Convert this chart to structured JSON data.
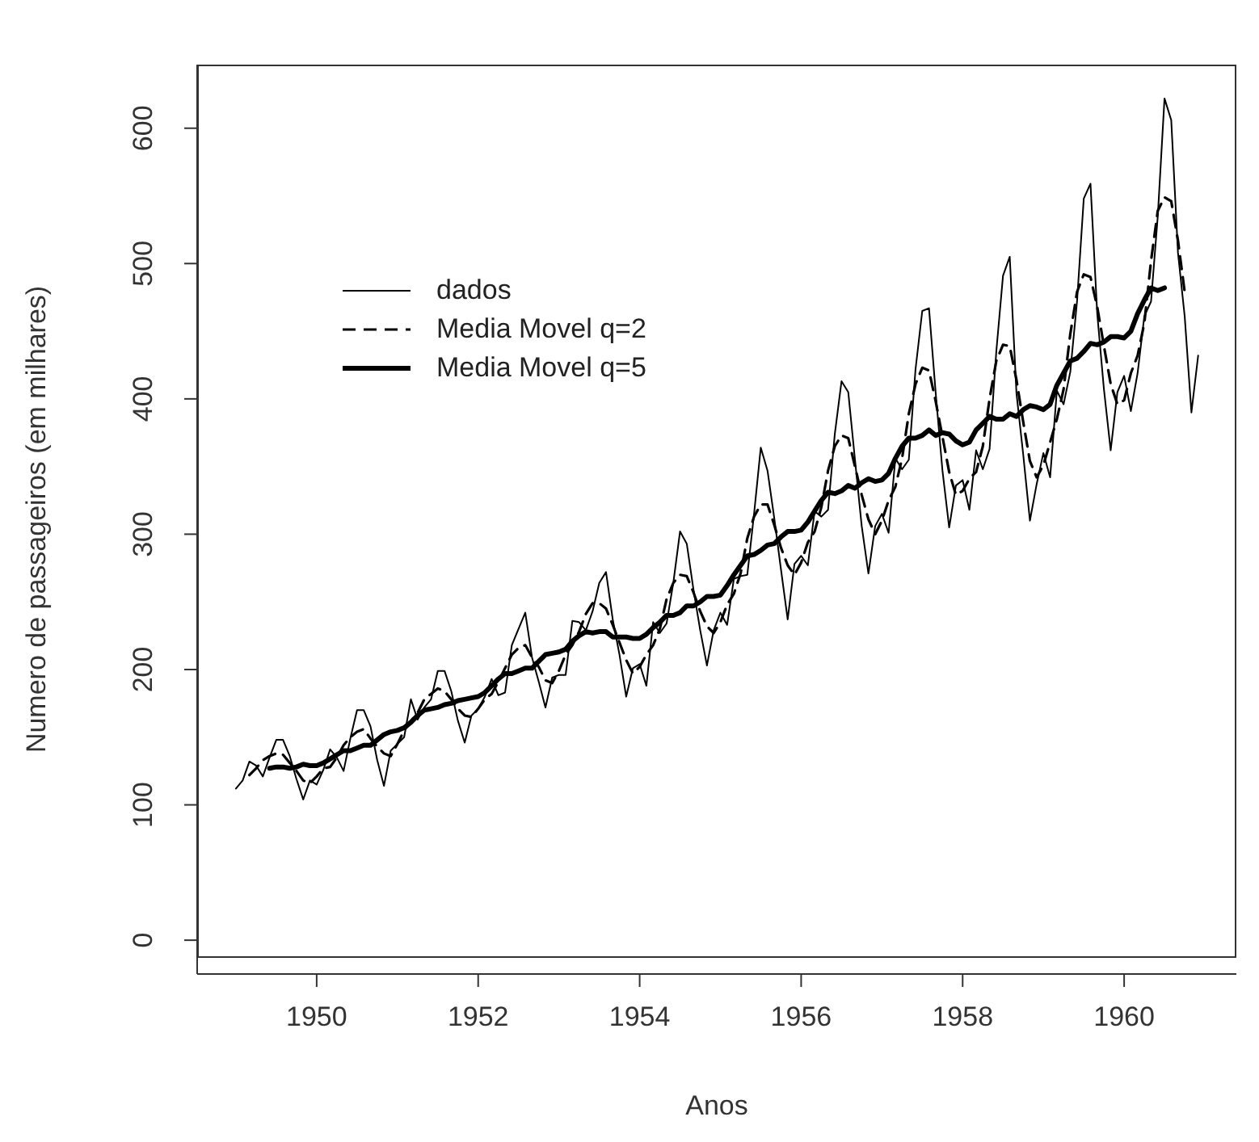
{
  "chart_data": {
    "type": "line",
    "xlabel": "Anos",
    "ylabel": "Numero de passageiros (em milhares)",
    "x": [
      1949,
      1949.0833,
      1949.1667,
      1949.25,
      1949.3333,
      1949.4167,
      1949.5,
      1949.5833,
      1949.6667,
      1949.75,
      1949.8333,
      1949.9167,
      1950,
      1950.0833,
      1950.1667,
      1950.25,
      1950.3333,
      1950.4167,
      1950.5,
      1950.5833,
      1950.6667,
      1950.75,
      1950.8333,
      1950.9167,
      1951,
      1951.0833,
      1951.1667,
      1951.25,
      1951.3333,
      1951.4167,
      1951.5,
      1951.5833,
      1951.6667,
      1951.75,
      1951.8333,
      1951.9167,
      1952,
      1952.0833,
      1952.1667,
      1952.25,
      1952.3333,
      1952.4167,
      1952.5,
      1952.5833,
      1952.6667,
      1952.75,
      1952.8333,
      1952.9167,
      1953,
      1953.0833,
      1953.1667,
      1953.25,
      1953.3333,
      1953.4167,
      1953.5,
      1953.5833,
      1953.6667,
      1953.75,
      1953.8333,
      1953.9167,
      1954,
      1954.0833,
      1954.1667,
      1954.25,
      1954.3333,
      1954.4167,
      1954.5,
      1954.5833,
      1954.6667,
      1954.75,
      1954.8333,
      1954.9167,
      1955,
      1955.0833,
      1955.1667,
      1955.25,
      1955.3333,
      1955.4167,
      1955.5,
      1955.5833,
      1955.6667,
      1955.75,
      1955.8333,
      1955.9167,
      1956,
      1956.0833,
      1956.1667,
      1956.25,
      1956.3333,
      1956.4167,
      1956.5,
      1956.5833,
      1956.6667,
      1956.75,
      1956.8333,
      1956.9167,
      1957,
      1957.0833,
      1957.1667,
      1957.25,
      1957.3333,
      1957.4167,
      1957.5,
      1957.5833,
      1957.6667,
      1957.75,
      1957.8333,
      1957.9167,
      1958,
      1958.0833,
      1958.1667,
      1958.25,
      1958.3333,
      1958.4167,
      1958.5,
      1958.5833,
      1958.6667,
      1958.75,
      1958.8333,
      1958.9167,
      1959,
      1959.0833,
      1959.1667,
      1959.25,
      1959.3333,
      1959.4167,
      1959.5,
      1959.5833,
      1959.6667,
      1959.75,
      1959.8333,
      1959.9167,
      1960,
      1960.0833,
      1960.1667,
      1960.25,
      1960.3333,
      1960.4167,
      1960.5,
      1960.5833,
      1960.6667,
      1960.75,
      1960.8333,
      1960.9167
    ],
    "series": [
      {
        "name": "dados",
        "color": "#000000",
        "line_style": "solid",
        "values": [
          112,
          118,
          132,
          129,
          121,
          135,
          148,
          148,
          136,
          119,
          104,
          118,
          115,
          126,
          141,
          135,
          125,
          149,
          170,
          170,
          158,
          133,
          114,
          140,
          145,
          150,
          178,
          163,
          172,
          178,
          199,
          199,
          184,
          162,
          146,
          166,
          171,
          180,
          193,
          181,
          183,
          218,
          230,
          242,
          209,
          191,
          172,
          194,
          196,
          196,
          236,
          235,
          229,
          243,
          264,
          272,
          237,
          211,
          180,
          201,
          204,
          188,
          235,
          227,
          234,
          264,
          302,
          293,
          259,
          229,
          203,
          229,
          242,
          233,
          267,
          269,
          270,
          315,
          364,
          347,
          312,
          274,
          237,
          278,
          284,
          277,
          317,
          313,
          318,
          374,
          413,
          405,
          355,
          306,
          271,
          306,
          315,
          301,
          356,
          348,
          355,
          422,
          465,
          467,
          404,
          347,
          305,
          336,
          340,
          318,
          362,
          348,
          363,
          435,
          491,
          505,
          404,
          359,
          310,
          337,
          360,
          342,
          406,
          396,
          420,
          472,
          548,
          559,
          463,
          407,
          362,
          405,
          417,
          391,
          419,
          461,
          472,
          535,
          622,
          606,
          508,
          461,
          390,
          432
        ]
      },
      {
        "name": "Media Movel q=2",
        "color": "#000000",
        "line_style": "dashed",
        "values": [
          null,
          null,
          122,
          127,
          133,
          136,
          138,
          137,
          131,
          125,
          118,
          116,
          121,
          127,
          128,
          135,
          144,
          150,
          154,
          156,
          149,
          143,
          138,
          136,
          145,
          155,
          162,
          168,
          178,
          182,
          186,
          184,
          178,
          171,
          166,
          165,
          171,
          178,
          182,
          191,
          201,
          211,
          216,
          218,
          209,
          202,
          192,
          190,
          199,
          211,
          218,
          228,
          241,
          249,
          249,
          245,
          233,
          220,
          207,
          197,
          202,
          211,
          218,
          230,
          252,
          264,
          270,
          269,
          257,
          243,
          232,
          227,
          235,
          248,
          256,
          271,
          297,
          313,
          322,
          322,
          307,
          290,
          277,
          270,
          279,
          294,
          302,
          320,
          347,
          365,
          373,
          371,
          350,
          329,
          311,
          300,
          310,
          325,
          335,
          356,
          389,
          411,
          423,
          421,
          398,
          372,
          346,
          329,
          332,
          341,
          346,
          365,
          400,
          428,
          440,
          439,
          414,
          383,
          354,
          342,
          351,
          368,
          385,
          407,
          448,
          479,
          492,
          490,
          468,
          439,
          411,
          396,
          399,
          419,
          432,
          456,
          502,
          539,
          549,
          546,
          517,
          479,
          null,
          null
        ]
      },
      {
        "name": "Media Movel q=5",
        "color": "#000000",
        "line_style": "solid",
        "values": [
          null,
          null,
          null,
          null,
          null,
          127,
          128,
          128,
          127,
          128,
          130,
          129,
          129,
          131,
          134,
          137,
          140,
          140,
          142,
          144,
          144,
          148,
          152,
          154,
          155,
          157,
          161,
          166,
          170,
          171,
          172,
          174,
          175,
          177,
          178,
          179,
          180,
          183,
          188,
          193,
          197,
          197,
          199,
          201,
          201,
          206,
          211,
          212,
          213,
          215,
          221,
          225,
          228,
          227,
          228,
          228,
          224,
          224,
          224,
          223,
          223,
          226,
          231,
          235,
          240,
          240,
          242,
          247,
          247,
          250,
          254,
          254,
          255,
          262,
          270,
          277,
          284,
          285,
          288,
          292,
          293,
          298,
          302,
          302,
          303,
          309,
          317,
          325,
          331,
          330,
          332,
          336,
          334,
          338,
          341,
          339,
          340,
          345,
          356,
          365,
          371,
          371,
          373,
          377,
          373,
          375,
          374,
          369,
          366,
          368,
          377,
          382,
          387,
          385,
          385,
          389,
          387,
          392,
          395,
          394,
          392,
          396,
          410,
          419,
          428,
          430,
          435,
          441,
          440,
          442,
          446,
          446,
          445,
          450,
          463,
          473,
          482,
          480,
          482,
          null,
          null,
          null,
          null,
          null
        ]
      }
    ],
    "xlim": [
      1948.52,
      1961.39
    ],
    "xticks": [
      1950,
      1952,
      1954,
      1956,
      1958,
      1960
    ],
    "ylim": [
      -25,
      647
    ],
    "yticks": [
      0,
      100,
      200,
      300,
      400,
      500,
      600
    ],
    "grid": false,
    "legend": "top left",
    "marker": "none"
  }
}
